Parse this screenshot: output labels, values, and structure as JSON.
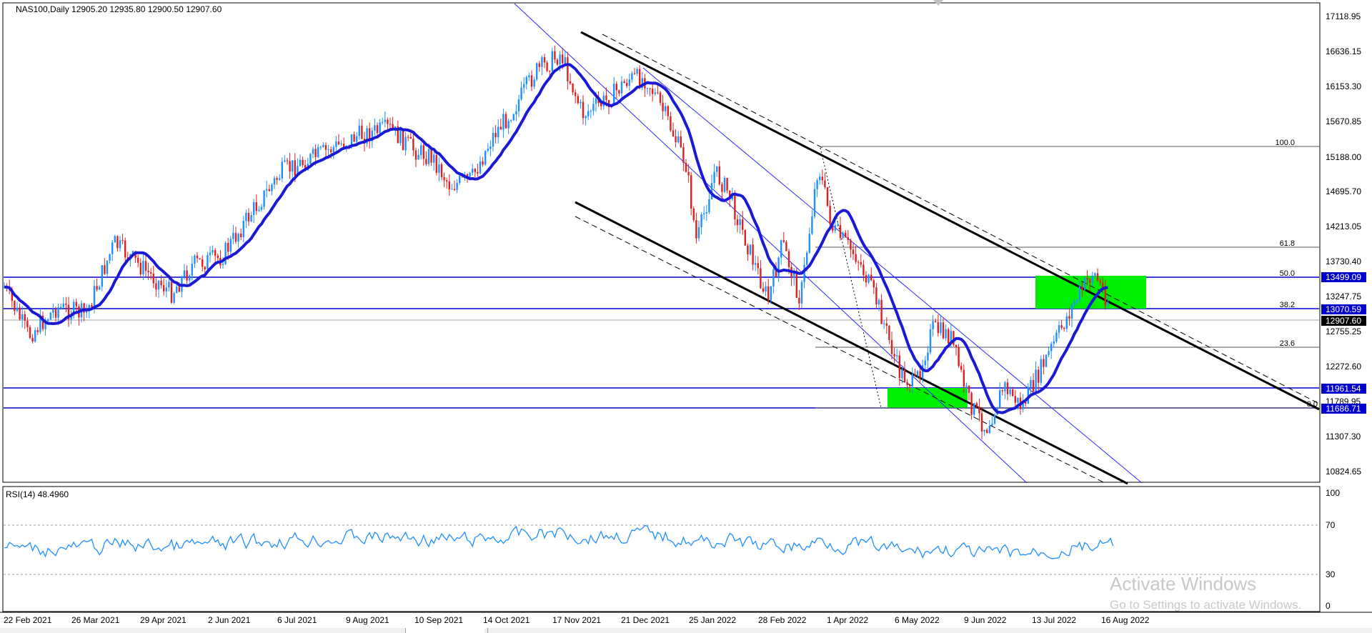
{
  "chart_header": {
    "symbol_info": "NAS100,Daily  12905.20 12935.80 12900.50 12907.60"
  },
  "price_axis": {
    "ticks": [
      "17118.95",
      "16636.15",
      "16153.30",
      "15670.85",
      "15188.00",
      "14695.70",
      "14213.05",
      "13730.40",
      "13247.75",
      "12755.25",
      "12272.60",
      "11789.95",
      "11307.30",
      "10824.65"
    ]
  },
  "price_labels": {
    "resistance_high": "13499.09",
    "resistance_low": "13070.59",
    "current_price": "12907.60",
    "support_high": "11961.54",
    "support_low": "11686.71"
  },
  "fibonacci": {
    "levels": [
      "100.0",
      "61.8",
      "50.0",
      "38.2",
      "23.6",
      "0.0"
    ]
  },
  "date_axis": {
    "labels": [
      "22 Feb 2021",
      "26 Mar 2021",
      "29 Apr 2021",
      "2 Jun 2021",
      "6 Jul 2021",
      "9 Aug 2021",
      "10 Sep 2021",
      "14 Oct 2021",
      "17 Nov 2021",
      "21 Dec 2021",
      "25 Jan 2022",
      "28 Feb 2022",
      "1 Apr 2022",
      "6 May 2022",
      "9 Jun 2022",
      "13 Jul 2022",
      "16 Aug 2022"
    ]
  },
  "rsi_panel": {
    "label": "RSI(14) 48.4960",
    "ticks": [
      "100",
      "70",
      "30",
      "0"
    ]
  },
  "watermark": {
    "title": "Activate Windows",
    "subtitle": "Go to Settings to activate Windows."
  },
  "colors": {
    "moving_average": "#1a1ad6",
    "bull_candle": "#1e90ff",
    "bear_candle": "#e02020",
    "horizontal_level": "#0000cc",
    "zone_fill": "#00ee00",
    "trend_line": "#000000",
    "current_price_bg": "#000000"
  }
}
